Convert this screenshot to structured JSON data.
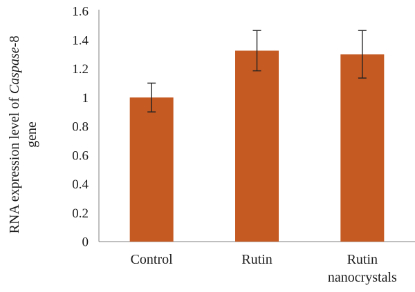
{
  "chart_data": {
    "type": "bar",
    "categories": [
      [
        "Control"
      ],
      [
        "Rutin"
      ],
      [
        "Rutin",
        "nanocrystals"
      ]
    ],
    "values": [
      1.0,
      1.325,
      1.3
    ],
    "error_low": [
      0.9,
      1.185,
      1.135
    ],
    "error_high": [
      1.1,
      1.465,
      1.465
    ],
    "ylabel_line1_prefix": "RNA expression level of ",
    "ylabel_line1_italic": "Caspase",
    "ylabel_line1_suffix": "-8",
    "ylabel_line2": "gene",
    "ylim": [
      0,
      1.6
    ],
    "yticks": [
      "0",
      "0.2",
      "0.4",
      "0.6",
      "0.8",
      "1",
      "1.2",
      "1.4",
      "1.6"
    ],
    "bar_color": "#c55a22",
    "grid": false
  }
}
